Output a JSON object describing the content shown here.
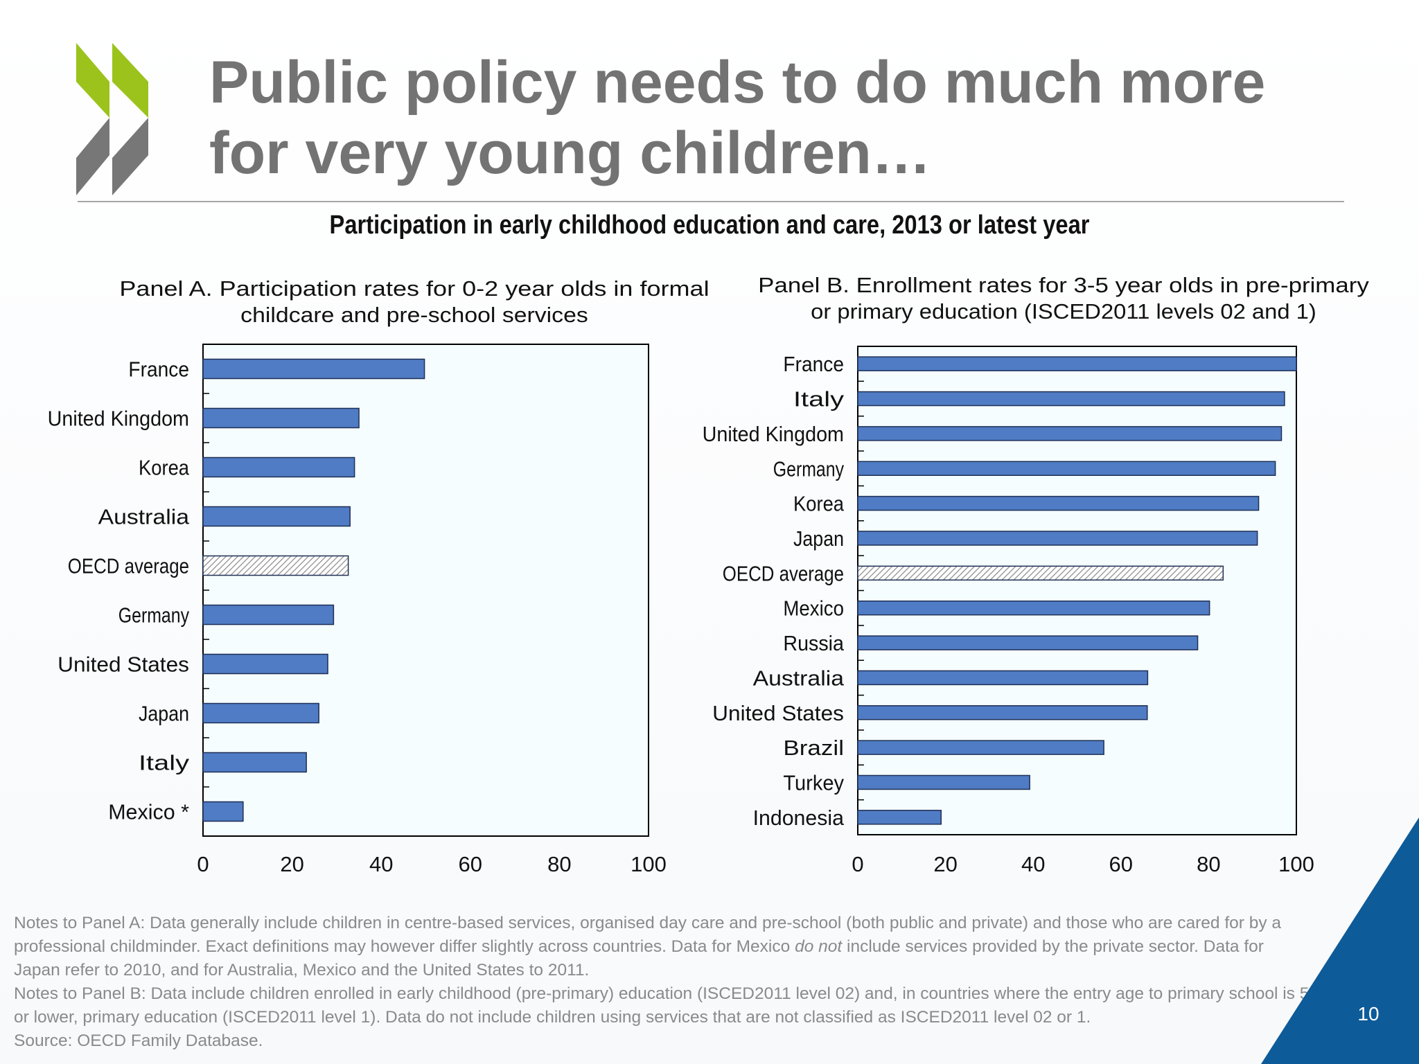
{
  "slide": {
    "title": "Public policy needs to do much more for very young children…",
    "chart_heading": "Participation in early childhood education and care, 2013 or latest year",
    "page_number": "10",
    "notes_a_part1": "Notes to Panel A: Data generally include children in centre-based services, organised day care and pre-school (both public and private) and those who are cared for by a professional childminder. Exact definitions may however differ slightly across countries. Data for Mexico ",
    "notes_a_emphasis": "do not",
    "notes_a_part2": " include services provided by the private sector. Data for Japan refer to 2010, and for Australia, Mexico and the United States to 2011.",
    "notes_b": "Notes to Panel B: Data include children enrolled in early childhood (pre-primary) education (ISCED2011 level 02) and, in countries where the entry age to primary school is 5 or lower, primary education (ISCED2011 level 1). Data do not include children using services that are not classified as ISCED2011 level 02 or 1.",
    "source": "Source: OECD Family Database."
  },
  "colors": {
    "bar": "#4f7cc4",
    "bar_border": "#1f2f55",
    "plot_background": "#f5fdff",
    "oecd_hatch": "#8c8c8c",
    "logo_green": "#9bc31c",
    "logo_grey": "#777777",
    "corner_blue": "#0d5b99"
  },
  "chart_data": [
    {
      "type": "bar",
      "orientation": "horizontal",
      "title": "Panel A. Participation rates for 0-2 year olds in formal childcare and pre-school services",
      "title_lines": [
        "Panel A. Participation rates for 0-2 year olds in formal",
        "childcare and pre-school services"
      ],
      "categories": [
        "France",
        "United Kingdom",
        "Korea",
        "Australia",
        "OECD average",
        "Germany",
        "United States",
        "Japan",
        "Italy",
        "Mexico *"
      ],
      "values": [
        49.7,
        35,
        34,
        33,
        32.6,
        29.3,
        28,
        26,
        23.2,
        9
      ],
      "highlight": "OECD average",
      "xlim": [
        0,
        100
      ],
      "xticks": [
        0,
        20,
        40,
        60,
        80,
        100
      ],
      "xlabel": "",
      "ylabel": ""
    },
    {
      "type": "bar",
      "orientation": "horizontal",
      "title": "Panel B. Enrollment rates for 3-5 year olds in pre-primary or primary education (ISCED2011 levels 02 and 1)",
      "title_lines": [
        "Panel B. Enrollment rates for 3-5 year olds in pre-primary",
        "or primary education (ISCED2011 levels 02 and 1)"
      ],
      "categories": [
        "France",
        "Italy",
        "United Kingdom",
        "Germany",
        "Korea",
        "Japan",
        "OECD average",
        "Mexico",
        "Russia",
        "Australia",
        "United States",
        "Brazil",
        "Turkey",
        "Indonesia"
      ],
      "values": [
        100,
        97.3,
        96.6,
        95.2,
        91.4,
        91.1,
        83.3,
        80.2,
        77.5,
        66.1,
        66,
        56.1,
        39.2,
        19
      ],
      "highlight": "OECD average",
      "xlim": [
        0,
        100
      ],
      "xticks": [
        0,
        20,
        40,
        60,
        80,
        100
      ],
      "xlabel": "",
      "ylabel": ""
    }
  ]
}
